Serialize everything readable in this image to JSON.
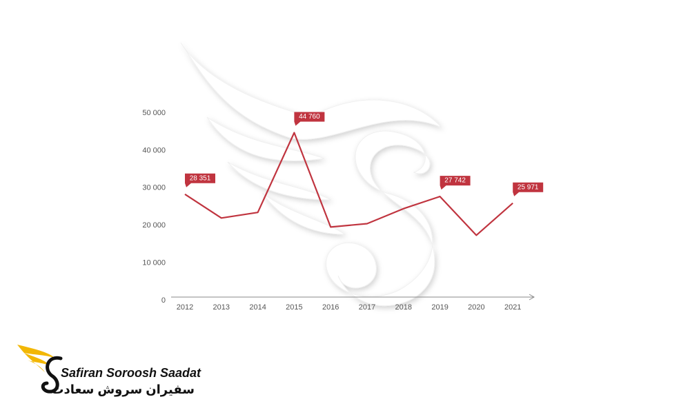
{
  "chart_data": {
    "type": "line",
    "categories": [
      "2012",
      "2013",
      "2014",
      "2015",
      "2016",
      "2017",
      "2018",
      "2019",
      "2020",
      "2021"
    ],
    "series": [
      {
        "color": "#c0343f",
        "values": [
          28351,
          22000,
          23500,
          44760,
          19600,
          20500,
          24500,
          27742,
          17400,
          25971
        ],
        "value_labels": [
          "28 351",
          null,
          null,
          "44 760",
          null,
          null,
          null,
          "27 742",
          null,
          "25 971"
        ]
      }
    ],
    "ylim": [
      0,
      50000
    ],
    "yticks": [
      0,
      {
        "value": 10000,
        "label": "10 000"
      },
      {
        "value": 20000,
        "label": "20 000"
      },
      {
        "value": 30000,
        "label": "30 000"
      },
      {
        "value": 40000,
        "label": "40 000"
      },
      {
        "value": 50000,
        "label": "50 000"
      }
    ],
    "grid": false
  },
  "logo": {
    "name": "Safiran Soroosh Saadat",
    "name_fa": "سفیران سروش سعادت"
  }
}
